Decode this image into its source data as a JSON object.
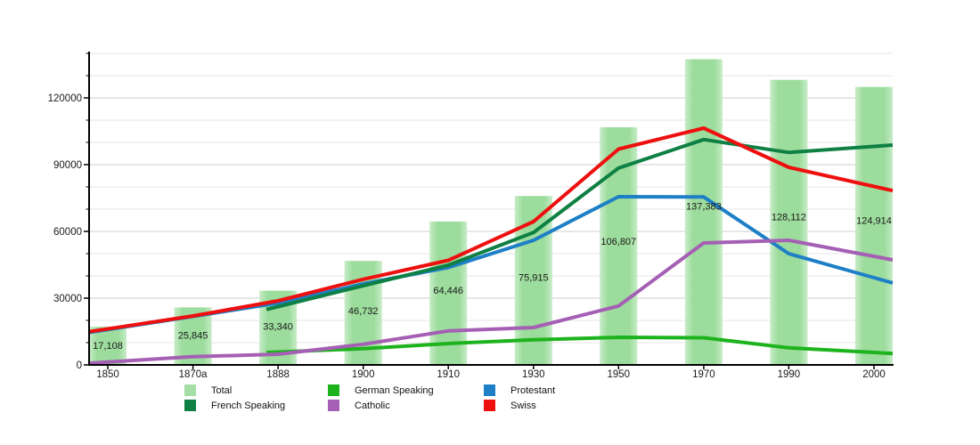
{
  "chart_data": {
    "type": "bar+line",
    "title": "",
    "categories": [
      "1850",
      "1870a",
      "1888",
      "1900",
      "1910",
      "1930",
      "1950",
      "1970",
      "1990",
      "2000"
    ],
    "total": {
      "name": "Total",
      "color_center": "#9cdc9c",
      "color_edge": "#c7ecc7",
      "values": [
        17108,
        25845,
        33340,
        46732,
        64446,
        75915,
        106807,
        137383,
        128112,
        124914
      ],
      "labels": [
        "17,108",
        "25,845",
        "33,340",
        "46,732",
        "64,446",
        "75,915",
        "106,807",
        "137,383",
        "128,112",
        "124,914"
      ]
    },
    "series": [
      {
        "name": "German Speaking",
        "color": "#1db31d",
        "values": [
          null,
          null,
          5800,
          7300,
          9600,
          11300,
          12400,
          12200,
          7700,
          5600
        ]
      },
      {
        "name": "Protestant",
        "color": "#1d7fc6",
        "values": [
          15900,
          21800,
          27800,
          36400,
          43800,
          56000,
          75600,
          75500,
          50000,
          39200
        ]
      },
      {
        "name": "French Speaking",
        "color": "#0e8043",
        "values": [
          null,
          null,
          26200,
          35600,
          44800,
          59500,
          88500,
          101300,
          95500,
          98200
        ]
      },
      {
        "name": "Catholic",
        "color": "#a55fb4",
        "values": [
          1300,
          3700,
          4800,
          9300,
          15300,
          16800,
          26500,
          54800,
          56000,
          48800
        ]
      },
      {
        "name": "Swiss",
        "color": "#ee0f0f",
        "values": [
          16200,
          22000,
          28800,
          38500,
          47000,
          64400,
          97000,
          106400,
          88800,
          80200
        ]
      }
    ],
    "y_ticks": [
      {
        "value": 0,
        "label": "0"
      },
      {
        "value": 30000,
        "label": "30000"
      },
      {
        "value": 60000,
        "label": "60000"
      },
      {
        "value": 90000,
        "label": "90000"
      },
      {
        "value": 120000,
        "label": "120000"
      }
    ],
    "y_minor_step": 10000,
    "y_major_step": 30000,
    "ylim": [
      0,
      140000
    ],
    "grid": "horizontal-minor-and-major",
    "legend_position": "bottom",
    "legend_items": [
      {
        "label": "Total",
        "color": "#a6dfa6"
      },
      {
        "label": "French Speaking",
        "color": "#0e8043"
      },
      {
        "label": "German Speaking",
        "color": "#1db31d"
      },
      {
        "label": "Catholic",
        "color": "#a55fb4"
      },
      {
        "label": "Protestant",
        "color": "#1d7fc6"
      },
      {
        "label": "Swiss",
        "color": "#ee0f0f"
      }
    ]
  }
}
